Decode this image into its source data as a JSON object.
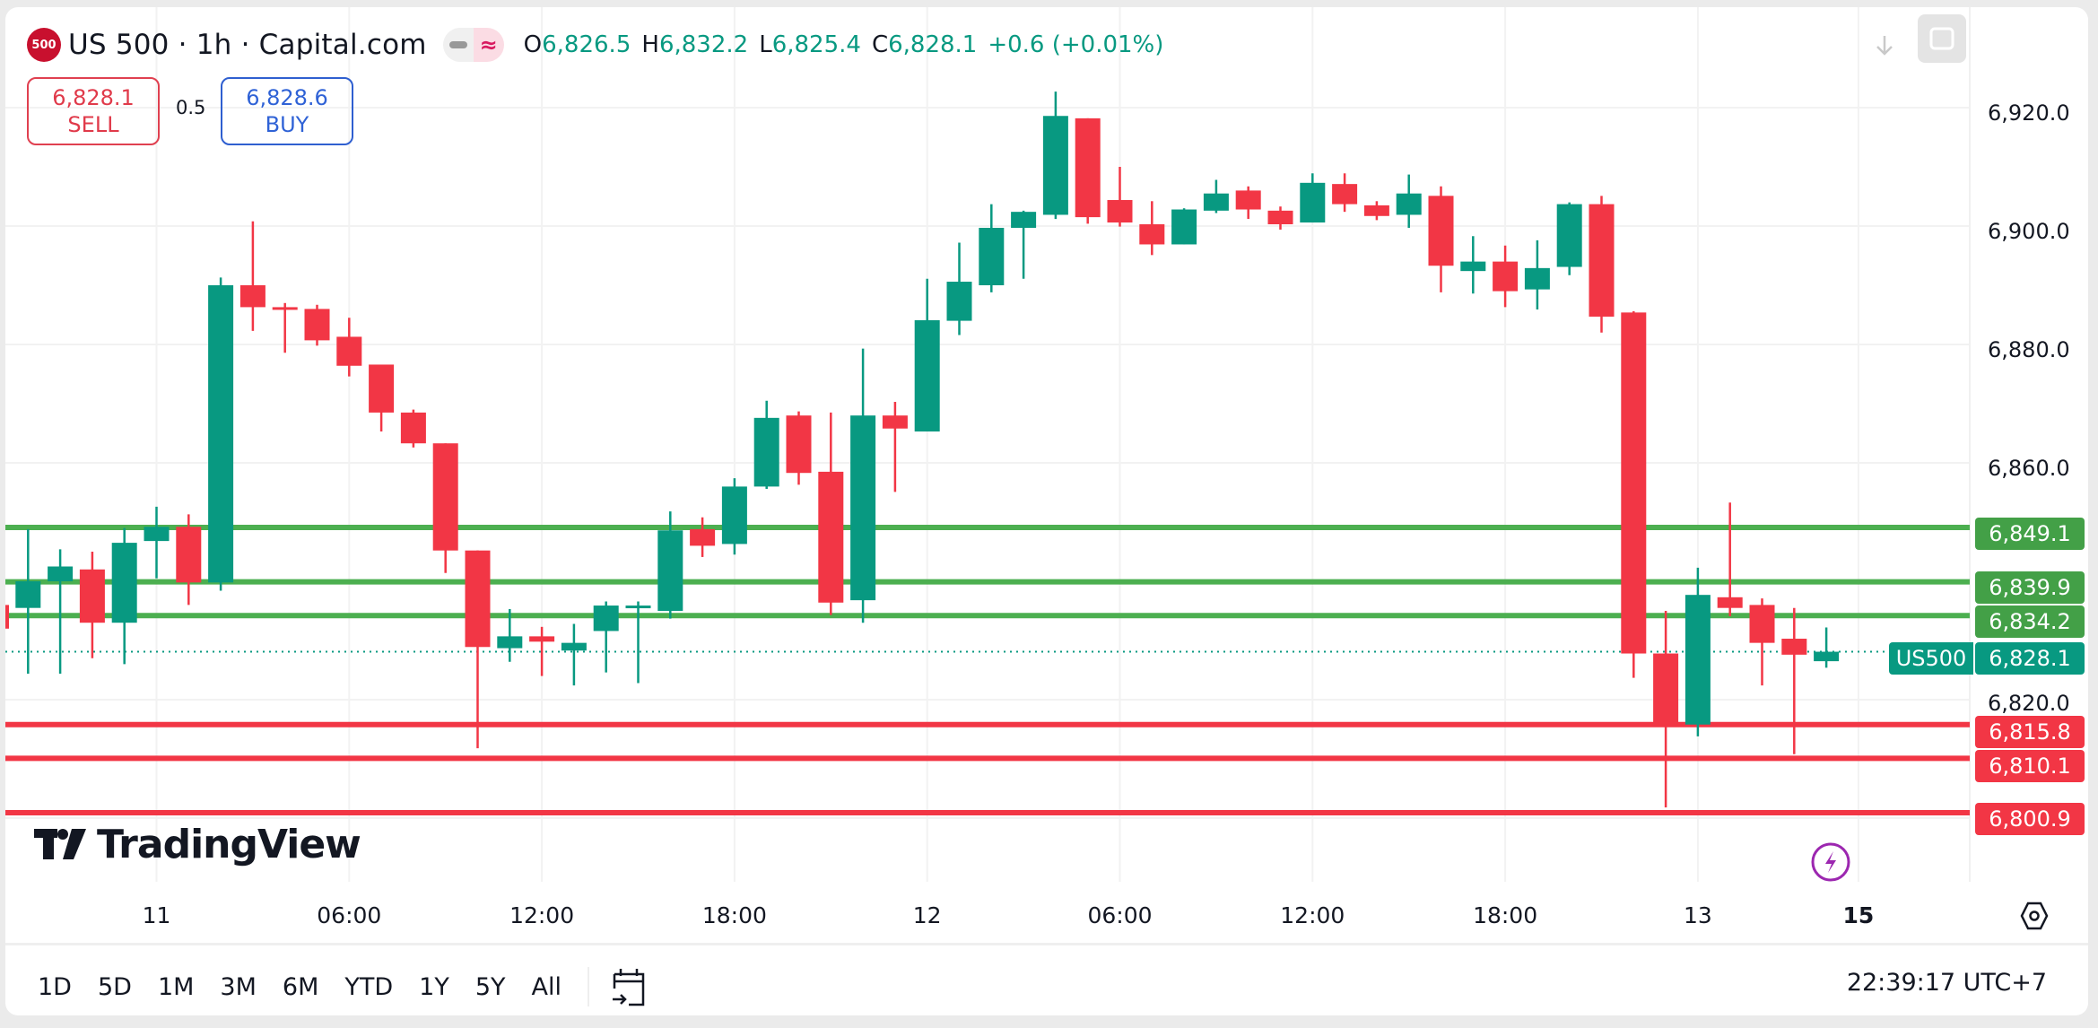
{
  "header": {
    "logo_text": "500",
    "symbol_title": "US 500 · 1h · Capital.com",
    "ohlc": [
      {
        "key": "O",
        "value": "6,826.5"
      },
      {
        "key": "H",
        "value": "6,832.2"
      },
      {
        "key": "L",
        "value": "6,825.4"
      },
      {
        "key": "C",
        "value": "6,828.1"
      }
    ],
    "change": "+0.6 (+0.01%)"
  },
  "trade": {
    "sell_price": "6,828.1",
    "sell_label": "SELL",
    "spread": "0.5",
    "buy_price": "6,828.6",
    "buy_label": "BUY"
  },
  "toolbar_icons": [
    "download-arrow-icon",
    "fullscreen-icon"
  ],
  "price_axis": {
    "ticks": [
      "6,920.0",
      "6,900.0",
      "6,880.0",
      "6,860.0",
      "6,820.0"
    ]
  },
  "levels": {
    "resistance": [
      "6,849.1",
      "6,839.9",
      "6,834.2"
    ],
    "support": [
      "6,815.8",
      "6,810.1",
      "6,800.9"
    ],
    "current_symbol": "US500",
    "current_price": "6,828.1"
  },
  "time_axis": {
    "labels": [
      "11",
      "06:00",
      "12:00",
      "18:00",
      "12",
      "06:00",
      "12:00",
      "18:00",
      "13",
      "15"
    ]
  },
  "watermark": "TradingView",
  "range_buttons": [
    "1D",
    "5D",
    "1M",
    "3M",
    "6M",
    "YTD",
    "1Y",
    "5Y",
    "All"
  ],
  "clock": "22:39:17 UTC+7",
  "colors": {
    "up": "#089981",
    "down": "#f23645",
    "resistance_line": "#4caf50",
    "support_line": "#f23645",
    "sell": "#e03a4a",
    "buy": "#2f62d6",
    "flash_icon": "#9c27b0"
  },
  "chart_data": {
    "type": "candlestick",
    "title": "US 500 · 1h · Capital.com",
    "interval": "1h",
    "xlabel": "",
    "ylabel": "",
    "ylim": [
      6797,
      6928
    ],
    "y_ticks": [
      6820,
      6860,
      6880,
      6900,
      6920
    ],
    "grid": true,
    "x_tick_labels": [
      {
        "label": "11",
        "hour_index": 4
      },
      {
        "label": "06:00",
        "hour_index": 10
      },
      {
        "label": "12:00",
        "hour_index": 16
      },
      {
        "label": "18:00",
        "hour_index": 22
      },
      {
        "label": "12",
        "hour_index": 28
      },
      {
        "label": "06:00",
        "hour_index": 34
      },
      {
        "label": "12:00",
        "hour_index": 40
      },
      {
        "label": "18:00",
        "hour_index": 46
      },
      {
        "label": "13",
        "hour_index": 52
      },
      {
        "label": "15",
        "hour_index": 57
      }
    ],
    "horizontal_lines": [
      {
        "price": 6849.1,
        "color": "green"
      },
      {
        "price": 6839.9,
        "color": "green"
      },
      {
        "price": 6834.2,
        "color": "green"
      },
      {
        "price": 6815.8,
        "color": "red"
      },
      {
        "price": 6810.1,
        "color": "red"
      },
      {
        "price": 6800.9,
        "color": "red"
      }
    ],
    "last_price": 6828.1,
    "candles": [
      {
        "o": 6835.5,
        "h": 6848.8,
        "l": 6824.4,
        "c": 6840.0
      },
      {
        "o": 6840.0,
        "h": 6845.4,
        "l": 6824.4,
        "c": 6842.5
      },
      {
        "o": 6842.0,
        "h": 6845.0,
        "l": 6827.0,
        "c": 6833.0
      },
      {
        "o": 6833.0,
        "h": 6849.0,
        "l": 6826.0,
        "c": 6846.5
      },
      {
        "o": 6846.8,
        "h": 6852.6,
        "l": 6840.5,
        "c": 6849.2
      },
      {
        "o": 6849.2,
        "h": 6851.3,
        "l": 6836.0,
        "c": 6839.8
      },
      {
        "o": 6839.8,
        "h": 6891.3,
        "l": 6838.4,
        "c": 6890.0
      },
      {
        "o": 6890.0,
        "h": 6900.8,
        "l": 6882.3,
        "c": 6886.3
      },
      {
        "o": 6886.3,
        "h": 6887.0,
        "l": 6878.6,
        "c": 6886.0
      },
      {
        "o": 6886.0,
        "h": 6886.7,
        "l": 6879.8,
        "c": 6880.7
      },
      {
        "o": 6881.3,
        "h": 6884.5,
        "l": 6874.6,
        "c": 6876.4
      },
      {
        "o": 6876.6,
        "h": 6876.6,
        "l": 6865.3,
        "c": 6868.5
      },
      {
        "o": 6868.5,
        "h": 6869.0,
        "l": 6862.6,
        "c": 6863.3
      },
      {
        "o": 6863.3,
        "h": 6863.3,
        "l": 6841.4,
        "c": 6845.2
      },
      {
        "o": 6845.2,
        "h": 6845.2,
        "l": 6811.8,
        "c": 6828.9
      },
      {
        "o": 6828.7,
        "h": 6835.3,
        "l": 6826.4,
        "c": 6830.7
      },
      {
        "o": 6830.7,
        "h": 6832.3,
        "l": 6824.0,
        "c": 6829.8
      },
      {
        "o": 6828.3,
        "h": 6832.8,
        "l": 6822.4,
        "c": 6829.6
      },
      {
        "o": 6831.6,
        "h": 6836.6,
        "l": 6824.6,
        "c": 6835.9
      },
      {
        "o": 6835.7,
        "h": 6836.6,
        "l": 6822.8,
        "c": 6835.9
      },
      {
        "o": 6835.0,
        "h": 6851.8,
        "l": 6833.7,
        "c": 6848.6
      },
      {
        "o": 6848.8,
        "h": 6850.8,
        "l": 6844.1,
        "c": 6846.0
      },
      {
        "o": 6846.3,
        "h": 6857.4,
        "l": 6844.5,
        "c": 6856.0
      },
      {
        "o": 6856.0,
        "h": 6870.5,
        "l": 6855.6,
        "c": 6867.6
      },
      {
        "o": 6868.0,
        "h": 6868.7,
        "l": 6856.3,
        "c": 6858.3
      },
      {
        "o": 6858.5,
        "h": 6868.5,
        "l": 6834.3,
        "c": 6836.4
      },
      {
        "o": 6836.8,
        "h": 6879.3,
        "l": 6833.0,
        "c": 6868.0
      },
      {
        "o": 6868.0,
        "h": 6870.3,
        "l": 6855.1,
        "c": 6865.8
      },
      {
        "o": 6865.3,
        "h": 6891.1,
        "l": 6865.3,
        "c": 6884.1
      },
      {
        "o": 6884.0,
        "h": 6897.2,
        "l": 6881.6,
        "c": 6890.6
      },
      {
        "o": 6890.0,
        "h": 6903.7,
        "l": 6888.8,
        "c": 6899.7
      },
      {
        "o": 6899.7,
        "h": 6902.6,
        "l": 6891.1,
        "c": 6902.4
      },
      {
        "o": 6901.9,
        "h": 6922.7,
        "l": 6901.2,
        "c": 6918.6
      },
      {
        "o": 6918.2,
        "h": 6918.2,
        "l": 6900.4,
        "c": 6901.5
      },
      {
        "o": 6904.4,
        "h": 6910.0,
        "l": 6899.9,
        "c": 6900.6
      },
      {
        "o": 6900.3,
        "h": 6904.2,
        "l": 6895.1,
        "c": 6896.9
      },
      {
        "o": 6896.9,
        "h": 6903.0,
        "l": 6896.9,
        "c": 6902.8
      },
      {
        "o": 6902.6,
        "h": 6907.8,
        "l": 6902.2,
        "c": 6905.5
      },
      {
        "o": 6906.0,
        "h": 6906.7,
        "l": 6901.2,
        "c": 6902.8
      },
      {
        "o": 6902.6,
        "h": 6903.3,
        "l": 6899.4,
        "c": 6900.3
      },
      {
        "o": 6900.6,
        "h": 6908.9,
        "l": 6900.6,
        "c": 6907.3
      },
      {
        "o": 6907.1,
        "h": 6908.9,
        "l": 6902.4,
        "c": 6903.7
      },
      {
        "o": 6903.5,
        "h": 6904.2,
        "l": 6901.0,
        "c": 6901.7
      },
      {
        "o": 6901.9,
        "h": 6908.7,
        "l": 6899.7,
        "c": 6905.5
      },
      {
        "o": 6905.1,
        "h": 6906.7,
        "l": 6888.8,
        "c": 6893.3
      },
      {
        "o": 6892.4,
        "h": 6898.3,
        "l": 6888.6,
        "c": 6894.0
      },
      {
        "o": 6894.0,
        "h": 6896.7,
        "l": 6886.3,
        "c": 6889.0
      },
      {
        "o": 6889.3,
        "h": 6897.6,
        "l": 6885.9,
        "c": 6892.9
      },
      {
        "o": 6893.1,
        "h": 6904.0,
        "l": 6891.7,
        "c": 6903.7
      },
      {
        "o": 6903.7,
        "h": 6905.1,
        "l": 6882.0,
        "c": 6884.7
      },
      {
        "o": 6885.4,
        "h": 6885.6,
        "l": 6823.7,
        "c": 6827.8
      },
      {
        "o": 6827.8,
        "h": 6835.0,
        "l": 6801.8,
        "c": 6815.8
      },
      {
        "o": 6815.8,
        "h": 6842.3,
        "l": 6813.8,
        "c": 6837.7
      },
      {
        "o": 6837.3,
        "h": 6853.3,
        "l": 6834.1,
        "c": 6835.5
      },
      {
        "o": 6836.0,
        "h": 6837.1,
        "l": 6822.4,
        "c": 6829.6
      },
      {
        "o": 6830.3,
        "h": 6835.5,
        "l": 6810.8,
        "c": 6827.6
      },
      {
        "o": 6826.5,
        "h": 6832.2,
        "l": 6825.4,
        "c": 6828.1
      }
    ]
  }
}
